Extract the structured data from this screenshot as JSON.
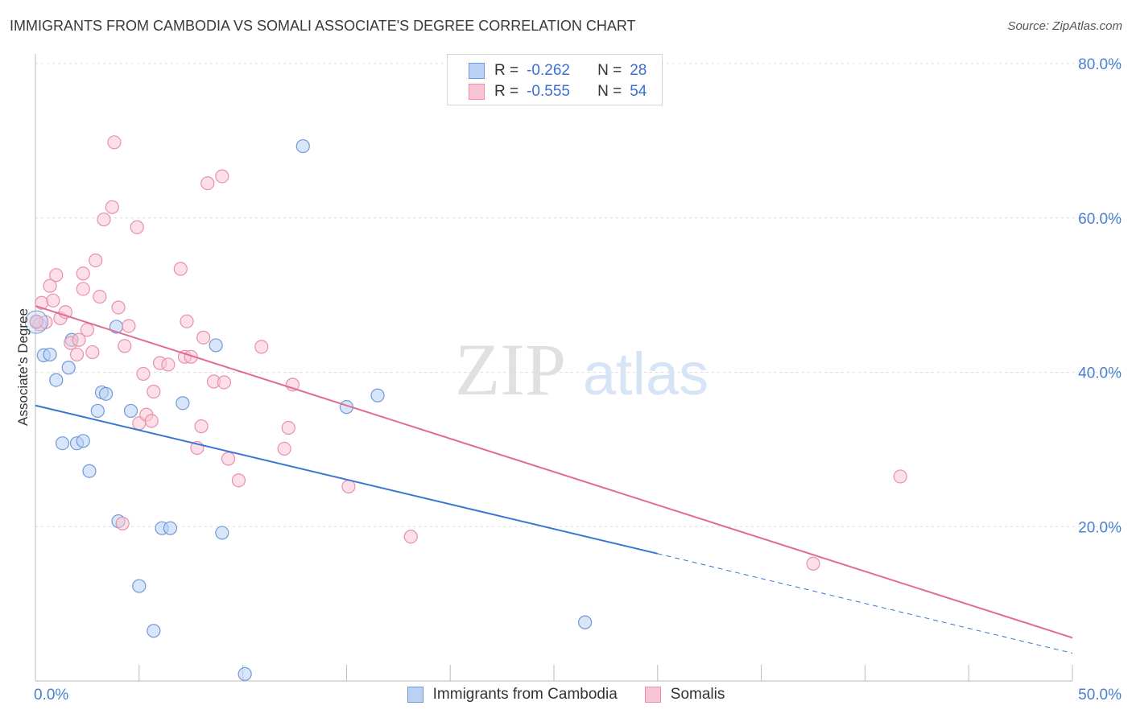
{
  "header": {
    "title": "IMMIGRANTS FROM CAMBODIA VS SOMALI ASSOCIATE'S DEGREE CORRELATION CHART",
    "source": "Source: ZipAtlas.com"
  },
  "legend": {
    "rows": [
      {
        "r_label": "R =",
        "r_value": "-0.262",
        "n_label": "N =",
        "n_value": "28"
      },
      {
        "r_label": "R =",
        "r_value": "-0.555",
        "n_label": "N =",
        "n_value": "54"
      }
    ]
  },
  "colors": {
    "cambodia_fill": "#b9d2f4",
    "cambodia_stroke": "#6f9ad8",
    "cambodia_line": "#3675d2",
    "somali_fill": "#f9c4d4",
    "somali_stroke": "#e890ab",
    "somali_line": "#e06c96"
  },
  "watermark": {
    "zip": "ZIP",
    "atlas": "atlas"
  },
  "chart_data": {
    "type": "scatter",
    "title": "IMMIGRANTS FROM CAMBODIA VS SOMALI ASSOCIATE'S DEGREE CORRELATION CHART",
    "xlabel": "",
    "ylabel": "Associate's Degree",
    "xlim": [
      0,
      50
    ],
    "ylim": [
      0,
      80
    ],
    "x_tick_labels": [
      "0.0%",
      "50.0%"
    ],
    "y_ticks": [
      20,
      40,
      60,
      80
    ],
    "y_tick_labels": [
      "20.0%",
      "40.0%",
      "60.0%",
      "80.0%"
    ],
    "grid": true,
    "series": [
      {
        "name": "Immigrants from Cambodia",
        "points": [
          [
            0.05,
            46.5
          ],
          [
            0.4,
            42.2
          ],
          [
            0.7,
            42.3
          ],
          [
            1.0,
            39.0
          ],
          [
            1.3,
            30.8
          ],
          [
            1.6,
            40.6
          ],
          [
            1.75,
            44.2
          ],
          [
            2.0,
            30.8
          ],
          [
            2.3,
            31.1
          ],
          [
            2.6,
            27.2
          ],
          [
            3.0,
            35.0
          ],
          [
            3.2,
            37.4
          ],
          [
            3.4,
            37.2
          ],
          [
            3.9,
            45.9
          ],
          [
            4.0,
            20.7
          ],
          [
            4.6,
            35.0
          ],
          [
            5.0,
            12.3
          ],
          [
            5.7,
            6.5
          ],
          [
            6.1,
            19.8
          ],
          [
            6.5,
            19.8
          ],
          [
            7.1,
            36.0
          ],
          [
            8.7,
            43.5
          ],
          [
            9.0,
            19.2
          ],
          [
            10.1,
            0.9
          ],
          [
            12.9,
            69.3
          ],
          [
            15.0,
            35.5
          ],
          [
            16.5,
            37.0
          ],
          [
            26.5,
            7.6
          ]
        ],
        "trend": {
          "x0": 0,
          "y0": 35.7,
          "x1": 30,
          "y1": 16.5,
          "dash_to_x": 50,
          "dash_to_y": 3.6
        }
      },
      {
        "name": "Somalis",
        "points": [
          [
            0.2,
            46.2
          ],
          [
            0.3,
            49.0
          ],
          [
            0.5,
            46.5
          ],
          [
            0.7,
            51.2
          ],
          [
            0.85,
            49.3
          ],
          [
            1.0,
            52.6
          ],
          [
            1.2,
            47.0
          ],
          [
            1.45,
            47.8
          ],
          [
            1.7,
            43.8
          ],
          [
            2.0,
            42.3
          ],
          [
            2.1,
            44.2
          ],
          [
            2.3,
            50.8
          ],
          [
            2.3,
            52.8
          ],
          [
            2.5,
            45.5
          ],
          [
            2.75,
            42.6
          ],
          [
            2.9,
            54.5
          ],
          [
            3.1,
            49.8
          ],
          [
            3.3,
            59.8
          ],
          [
            3.7,
            61.4
          ],
          [
            3.8,
            69.8
          ],
          [
            4.0,
            48.4
          ],
          [
            4.2,
            20.4
          ],
          [
            4.3,
            43.4
          ],
          [
            4.5,
            46.0
          ],
          [
            4.9,
            58.8
          ],
          [
            5.0,
            33.4
          ],
          [
            5.2,
            39.8
          ],
          [
            5.35,
            34.5
          ],
          [
            5.6,
            33.7
          ],
          [
            5.7,
            37.5
          ],
          [
            6.0,
            41.2
          ],
          [
            6.4,
            41.0
          ],
          [
            7.0,
            53.4
          ],
          [
            7.2,
            42.0
          ],
          [
            7.3,
            46.6
          ],
          [
            7.5,
            42.0
          ],
          [
            7.8,
            30.2
          ],
          [
            8.0,
            33.0
          ],
          [
            8.1,
            44.5
          ],
          [
            8.3,
            64.5
          ],
          [
            8.6,
            38.8
          ],
          [
            9.0,
            65.4
          ],
          [
            9.1,
            38.7
          ],
          [
            9.3,
            28.8
          ],
          [
            9.8,
            26.0
          ],
          [
            10.9,
            43.3
          ],
          [
            12.0,
            30.1
          ],
          [
            12.2,
            32.8
          ],
          [
            12.4,
            38.4
          ],
          [
            15.1,
            25.2
          ],
          [
            18.1,
            18.7
          ],
          [
            37.5,
            15.2
          ],
          [
            41.7,
            26.5
          ],
          [
            0.05,
            46.6
          ]
        ],
        "trend": {
          "x0": 0,
          "y0": 48.6,
          "x1": 50,
          "y1": 5.6
        }
      }
    ]
  }
}
